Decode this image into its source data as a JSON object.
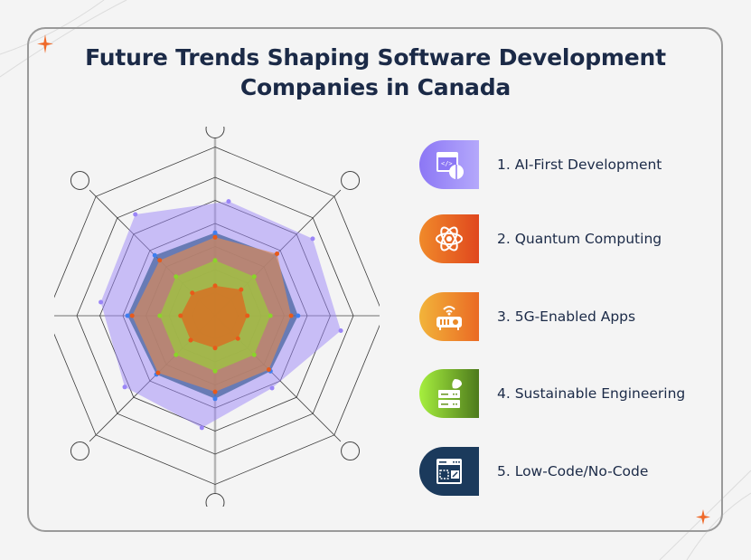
{
  "title": {
    "line1": "Future Trends Shaping Software Development",
    "line2": "Companies in Canada"
  },
  "colors": {
    "background": "#f4f4f4",
    "frame": "#9a9a9a",
    "title": "#1b2a47",
    "sparkle": "#ef6a2a"
  },
  "trends": [
    {
      "label": "1. AI-First Development",
      "icon": "code-window-brain-icon",
      "gradient": [
        "#8c77f5",
        "#b4a8fb"
      ]
    },
    {
      "label": "2. Quantum Computing",
      "icon": "atom-icon",
      "gradient": [
        "#f08a2a",
        "#e0471e"
      ]
    },
    {
      "label": "3. 5G-Enabled Apps",
      "icon": "wifi-router-icon",
      "gradient": [
        "#f2b43a",
        "#ea6a24"
      ]
    },
    {
      "label": "4. Sustainable Engineering",
      "icon": "server-leaf-icon",
      "gradient": [
        "#a6ef3e",
        "#4d7a1c"
      ]
    },
    {
      "label": "5. Low-Code/No-Code",
      "icon": "browser-builder-icon",
      "gradient": [
        "#1b3a5c",
        "#1b3a5c"
      ]
    }
  ],
  "chart_data": {
    "type": "radar",
    "title": "",
    "axes": 8,
    "rings": 7,
    "axis_labels": [
      "",
      "",
      "",
      "",
      "",
      "",
      "",
      ""
    ],
    "series": [
      {
        "name": "purple",
        "color": "#9b86f7",
        "values": [
          4.6,
          5.0,
          5.1,
          3.6,
          4.5,
          4.6,
          4.6,
          5.2
        ]
      },
      {
        "name": "blue",
        "color": "#3f5f9a",
        "values": [
          3.6,
          3.7,
          3.6,
          3.4,
          3.6,
          3.6,
          3.8,
          3.7
        ]
      },
      {
        "name": "tan",
        "color": "#d98a5a",
        "values": [
          3.4,
          3.8,
          3.3,
          3.3,
          3.3,
          3.5,
          3.6,
          3.4
        ]
      },
      {
        "name": "green",
        "color": "#9acb3a",
        "values": [
          2.4,
          2.4,
          2.4,
          2.4,
          2.4,
          2.4,
          2.4,
          2.4
        ]
      },
      {
        "name": "orange",
        "color": "#e0641c",
        "values": [
          1.3,
          1.6,
          1.4,
          1.4,
          1.4,
          1.5,
          1.5,
          1.4
        ]
      }
    ]
  }
}
